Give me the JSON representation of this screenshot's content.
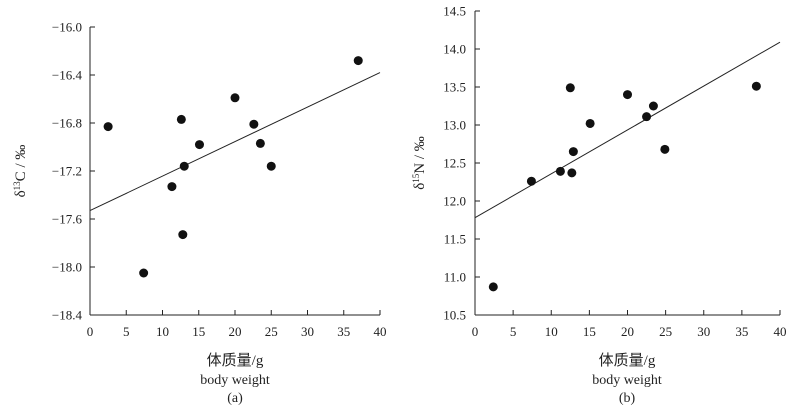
{
  "chart_data": [
    {
      "type": "scatter",
      "panel": "(a)",
      "xlabel_cn": "体质量/g",
      "xlabel_en": "body weight",
      "ylabel_main": "δ",
      "ylabel_sup": "13",
      "ylabel_rest": "C / ‰",
      "xlim": [
        0,
        40
      ],
      "ylim": [
        -18.4,
        -16.0
      ],
      "xticks": [
        0,
        5,
        10,
        15,
        20,
        25,
        30,
        35,
        40
      ],
      "yticks": [
        -16.0,
        -16.4,
        -16.8,
        -17.2,
        -17.6,
        -18.0,
        -18.4
      ],
      "ytick_labels": [
        "−16.0",
        "−16.4",
        "−16.8",
        "−17.2",
        "−17.6",
        "−18.0",
        "−18.4"
      ],
      "points": [
        {
          "x": 2.5,
          "y": -16.83
        },
        {
          "x": 7.4,
          "y": -18.05
        },
        {
          "x": 11.3,
          "y": -17.33
        },
        {
          "x": 12.6,
          "y": -16.77
        },
        {
          "x": 12.8,
          "y": -17.73
        },
        {
          "x": 13.0,
          "y": -17.16
        },
        {
          "x": 15.1,
          "y": -16.98
        },
        {
          "x": 20.0,
          "y": -16.59
        },
        {
          "x": 22.6,
          "y": -16.81
        },
        {
          "x": 23.5,
          "y": -16.97
        },
        {
          "x": 25.0,
          "y": -17.16
        },
        {
          "x": 37.0,
          "y": -16.28
        }
      ],
      "trendline": {
        "x0": 0,
        "y0": -17.53,
        "x1": 40,
        "y1": -16.38
      }
    },
    {
      "type": "scatter",
      "panel": "(b)",
      "xlabel_cn": "体质量/g",
      "xlabel_en": "body weight",
      "ylabel_main": "δ",
      "ylabel_sup": "15",
      "ylabel_rest": "N / ‰",
      "xlim": [
        0,
        40
      ],
      "ylim": [
        10.5,
        14.5
      ],
      "xticks": [
        0,
        5,
        10,
        15,
        20,
        25,
        30,
        35,
        40
      ],
      "yticks": [
        10.5,
        11.0,
        11.5,
        12.0,
        12.5,
        13.0,
        13.5,
        14.0,
        14.5
      ],
      "ytick_labels": [
        "10.5",
        "11.0",
        "11.5",
        "12.0",
        "12.5",
        "13.0",
        "13.5",
        "14.0",
        "14.5"
      ],
      "points": [
        {
          "x": 2.4,
          "y": 10.87
        },
        {
          "x": 7.4,
          "y": 12.26
        },
        {
          "x": 11.2,
          "y": 12.39
        },
        {
          "x": 12.5,
          "y": 13.49
        },
        {
          "x": 12.7,
          "y": 12.37
        },
        {
          "x": 12.9,
          "y": 12.65
        },
        {
          "x": 15.1,
          "y": 13.02
        },
        {
          "x": 20.0,
          "y": 13.4
        },
        {
          "x": 22.5,
          "y": 13.11
        },
        {
          "x": 23.4,
          "y": 13.25
        },
        {
          "x": 24.9,
          "y": 12.68
        },
        {
          "x": 36.9,
          "y": 13.51
        }
      ],
      "trendline": {
        "x0": 0,
        "y0": 11.78,
        "x1": 40,
        "y1": 14.09
      }
    }
  ]
}
